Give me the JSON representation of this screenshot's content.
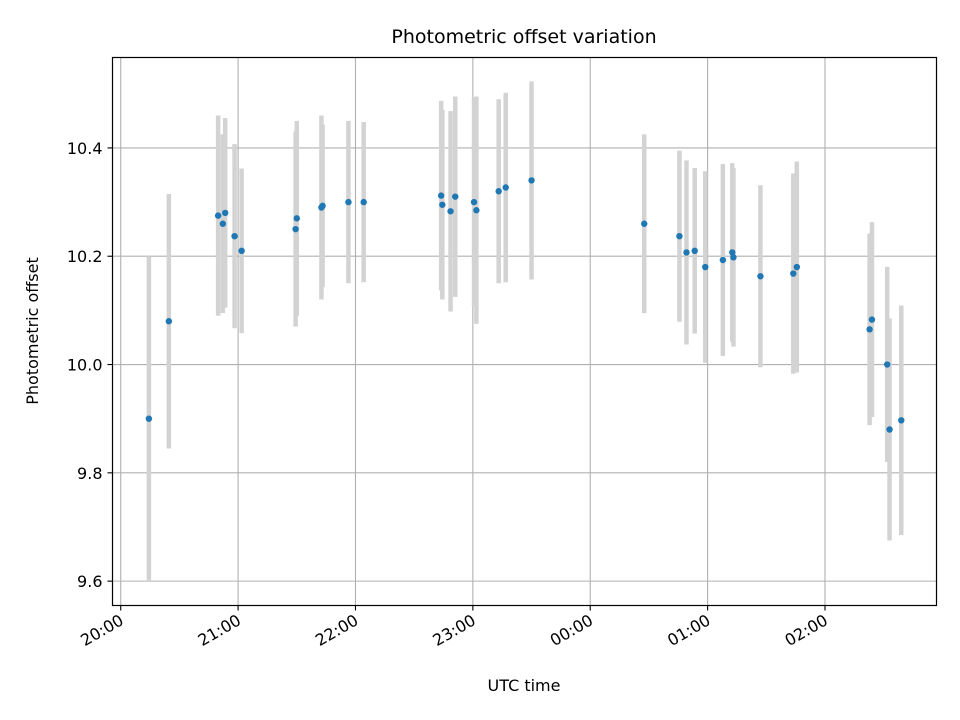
{
  "chart_data": {
    "type": "scatter",
    "title": "Photometric offset variation",
    "xlabel": "UTC time",
    "ylabel": "Photometric offset",
    "x_unit": "hours after 20:00 UTC",
    "xlim": [
      -0.07,
      6.95
    ],
    "ylim": [
      9.555,
      10.567
    ],
    "x_ticks": [
      {
        "value": 0,
        "label": "20:00"
      },
      {
        "value": 1,
        "label": "21:00"
      },
      {
        "value": 2,
        "label": "22:00"
      },
      {
        "value": 3,
        "label": "23:00"
      },
      {
        "value": 4,
        "label": "00:00"
      },
      {
        "value": 5,
        "label": "01:00"
      },
      {
        "value": 6,
        "label": "02:00"
      }
    ],
    "y_ticks": [
      {
        "value": 9.6,
        "label": "9.6"
      },
      {
        "value": 9.8,
        "label": "9.8"
      },
      {
        "value": 10.0,
        "label": "10.0"
      },
      {
        "value": 10.2,
        "label": "10.2"
      },
      {
        "value": 10.4,
        "label": "10.4"
      }
    ],
    "grid": true,
    "point_color": "#1f77b4",
    "errorbar_color": "#d3d3d3",
    "points": [
      {
        "x": 0.24,
        "y": 9.9,
        "err": 0.3
      },
      {
        "x": 0.41,
        "y": 10.08,
        "err": 0.235
      },
      {
        "x": 0.83,
        "y": 10.275,
        "err": 0.185
      },
      {
        "x": 0.87,
        "y": 10.26,
        "err": 0.165
      },
      {
        "x": 0.89,
        "y": 10.28,
        "err": 0.175
      },
      {
        "x": 0.97,
        "y": 10.237,
        "err": 0.17
      },
      {
        "x": 1.03,
        "y": 10.21,
        "err": 0.152
      },
      {
        "x": 1.49,
        "y": 10.25,
        "err": 0.18
      },
      {
        "x": 1.5,
        "y": 10.27,
        "err": 0.18
      },
      {
        "x": 1.71,
        "y": 10.29,
        "err": 0.17
      },
      {
        "x": 1.72,
        "y": 10.293,
        "err": 0.15
      },
      {
        "x": 1.94,
        "y": 10.3,
        "err": 0.15
      },
      {
        "x": 2.07,
        "y": 10.3,
        "err": 0.148
      },
      {
        "x": 2.73,
        "y": 10.312,
        "err": 0.175
      },
      {
        "x": 2.74,
        "y": 10.295,
        "err": 0.175
      },
      {
        "x": 2.81,
        "y": 10.283,
        "err": 0.185
      },
      {
        "x": 2.85,
        "y": 10.31,
        "err": 0.185
      },
      {
        "x": 3.01,
        "y": 10.3,
        "err": 0.192
      },
      {
        "x": 3.03,
        "y": 10.285,
        "err": 0.21
      },
      {
        "x": 3.22,
        "y": 10.32,
        "err": 0.17
      },
      {
        "x": 3.28,
        "y": 10.327,
        "err": 0.175
      },
      {
        "x": 3.5,
        "y": 10.34,
        "err": 0.183
      },
      {
        "x": 4.46,
        "y": 10.26,
        "err": 0.165
      },
      {
        "x": 4.76,
        "y": 10.237,
        "err": 0.158
      },
      {
        "x": 4.82,
        "y": 10.207,
        "err": 0.17
      },
      {
        "x": 4.89,
        "y": 10.21,
        "err": 0.153
      },
      {
        "x": 4.98,
        "y": 10.18,
        "err": 0.177
      },
      {
        "x": 5.13,
        "y": 10.193,
        "err": 0.177
      },
      {
        "x": 5.21,
        "y": 10.207,
        "err": 0.165
      },
      {
        "x": 5.22,
        "y": 10.198,
        "err": 0.165
      },
      {
        "x": 5.45,
        "y": 10.163,
        "err": 0.168
      },
      {
        "x": 5.73,
        "y": 10.168,
        "err": 0.185
      },
      {
        "x": 5.76,
        "y": 10.18,
        "err": 0.195
      },
      {
        "x": 6.38,
        "y": 10.065,
        "err": 0.177
      },
      {
        "x": 6.4,
        "y": 10.083,
        "err": 0.18
      },
      {
        "x": 6.53,
        "y": 10.0,
        "err": 0.18
      },
      {
        "x": 6.55,
        "y": 9.88,
        "err": 0.205
      },
      {
        "x": 6.65,
        "y": 9.897,
        "err": 0.212
      }
    ]
  }
}
